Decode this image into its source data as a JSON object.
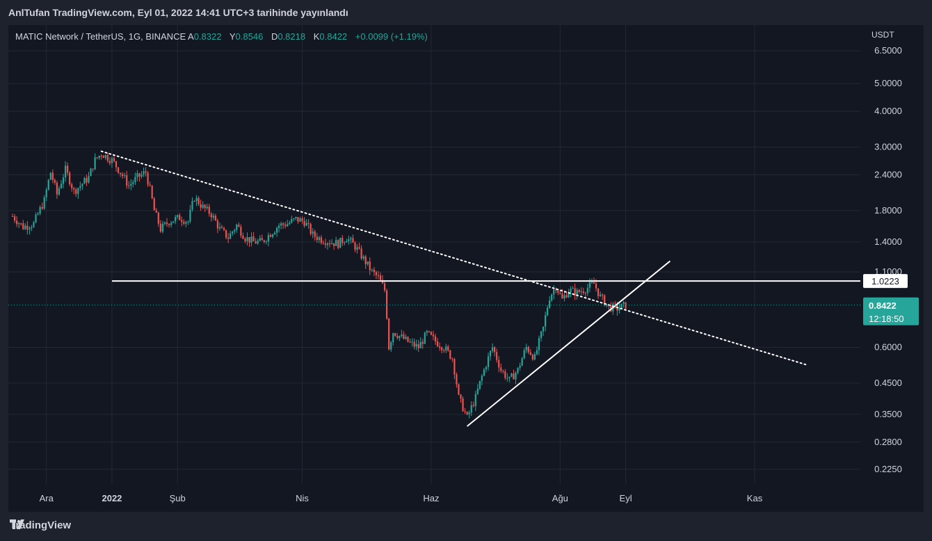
{
  "header": {
    "title": "AnlTufan TradingView.com, Eyl 01, 2022 14:41 UTC+3 tarihinde yayınlandı"
  },
  "legend": {
    "symbol": "MATIC Network / TetherUS, 1G, BINANCE",
    "open_label": "A",
    "open": "0.8322",
    "high_label": "Y",
    "high": "0.8546",
    "low_label": "D",
    "low": "0.8218",
    "close_label": "K",
    "close": "0.8422",
    "change": "+0.0099 (+1.19%)"
  },
  "axis": {
    "currency": "USDT"
  },
  "footer": {
    "brand": "TradingView"
  },
  "colors": {
    "up": "#26a69a",
    "down": "#ef5350",
    "background": "#131722",
    "grid": "#232834",
    "line": "#ffffff"
  },
  "chart_data": {
    "type": "candlestick",
    "y_scale": "log",
    "ylim": [
      0.2,
      8.0
    ],
    "y_ticks": [
      "6.5000",
      "5.0000",
      "4.0000",
      "3.0000",
      "2.4000",
      "1.8000",
      "1.4000",
      "1.1000",
      "0.6000",
      "0.4500",
      "0.3500",
      "0.2800",
      "0.2250"
    ],
    "x_ticks": [
      "Ara",
      "2022",
      "Şub",
      "Nis",
      "Haz",
      "Ağu",
      "Eyl",
      "Kas"
    ],
    "x_tick_dates": [
      "2021-12-01",
      "2022-01-01",
      "2022-02-01",
      "2022-04-01",
      "2022-06-01",
      "2022-08-01",
      "2022-09-01",
      "2022-11-01"
    ],
    "xlim": [
      "2021-11-13",
      "2022-12-21"
    ],
    "last_price": {
      "value": 0.8422,
      "label": "0.8422",
      "countdown": "12:18:50"
    },
    "horizontal_level": {
      "value": 1.0223,
      "label": "1.0223",
      "from": "2022-01-01"
    },
    "trendlines": [
      {
        "style": "dotted",
        "from": [
          "2021-12-27",
          2.9
        ],
        "to": [
          "2022-11-26",
          0.52
        ]
      },
      {
        "style": "solid",
        "from": [
          "2022-06-18",
          0.318
        ],
        "to": [
          "2022-09-22",
          1.2
        ]
      }
    ],
    "series": [
      {
        "date": "2021-11-15",
        "close": 1.72
      },
      {
        "date": "2021-11-20",
        "close": 1.58
      },
      {
        "date": "2021-11-25",
        "close": 1.62
      },
      {
        "date": "2021-11-30",
        "close": 1.95
      },
      {
        "date": "2021-12-03",
        "close": 2.45
      },
      {
        "date": "2021-12-06",
        "close": 2.05
      },
      {
        "date": "2021-12-10",
        "close": 2.5
      },
      {
        "date": "2021-12-14",
        "close": 2.1
      },
      {
        "date": "2021-12-17",
        "close": 2.2
      },
      {
        "date": "2021-12-21",
        "close": 2.35
      },
      {
        "date": "2021-12-24",
        "close": 2.7
      },
      {
        "date": "2021-12-27",
        "close": 2.85
      },
      {
        "date": "2022-01-01",
        "close": 2.7
      },
      {
        "date": "2022-01-05",
        "close": 2.45
      },
      {
        "date": "2022-01-09",
        "close": 2.2
      },
      {
        "date": "2022-01-13",
        "close": 2.35
      },
      {
        "date": "2022-01-17",
        "close": 2.45
      },
      {
        "date": "2022-01-21",
        "close": 1.8
      },
      {
        "date": "2022-01-24",
        "close": 1.55
      },
      {
        "date": "2022-01-28",
        "close": 1.65
      },
      {
        "date": "2022-02-02",
        "close": 1.7
      },
      {
        "date": "2022-02-06",
        "close": 1.65
      },
      {
        "date": "2022-02-09",
        "close": 2.0
      },
      {
        "date": "2022-02-13",
        "close": 1.85
      },
      {
        "date": "2022-02-17",
        "close": 1.75
      },
      {
        "date": "2022-02-21",
        "close": 1.55
      },
      {
        "date": "2022-02-25",
        "close": 1.45
      },
      {
        "date": "2022-03-01",
        "close": 1.6
      },
      {
        "date": "2022-03-05",
        "close": 1.45
      },
      {
        "date": "2022-03-09",
        "close": 1.4
      },
      {
        "date": "2022-03-13",
        "close": 1.4
      },
      {
        "date": "2022-03-17",
        "close": 1.5
      },
      {
        "date": "2022-03-21",
        "close": 1.6
      },
      {
        "date": "2022-03-25",
        "close": 1.62
      },
      {
        "date": "2022-03-29",
        "close": 1.68
      },
      {
        "date": "2022-04-02",
        "close": 1.65
      },
      {
        "date": "2022-04-06",
        "close": 1.48
      },
      {
        "date": "2022-04-10",
        "close": 1.43
      },
      {
        "date": "2022-04-14",
        "close": 1.4
      },
      {
        "date": "2022-04-18",
        "close": 1.38
      },
      {
        "date": "2022-04-22",
        "close": 1.45
      },
      {
        "date": "2022-04-26",
        "close": 1.35
      },
      {
        "date": "2022-04-30",
        "close": 1.22
      },
      {
        "date": "2022-05-04",
        "close": 1.1
      },
      {
        "date": "2022-05-07",
        "close": 1.05
      },
      {
        "date": "2022-05-10",
        "close": 0.95
      },
      {
        "date": "2022-05-12",
        "close": 0.6
      },
      {
        "date": "2022-05-14",
        "close": 0.68
      },
      {
        "date": "2022-05-18",
        "close": 0.65
      },
      {
        "date": "2022-05-22",
        "close": 0.62
      },
      {
        "date": "2022-05-26",
        "close": 0.6
      },
      {
        "date": "2022-05-30",
        "close": 0.67
      },
      {
        "date": "2022-06-03",
        "close": 0.63
      },
      {
        "date": "2022-06-07",
        "close": 0.6
      },
      {
        "date": "2022-06-11",
        "close": 0.55
      },
      {
        "date": "2022-06-14",
        "close": 0.4
      },
      {
        "date": "2022-06-18",
        "close": 0.34
      },
      {
        "date": "2022-06-22",
        "close": 0.4
      },
      {
        "date": "2022-06-26",
        "close": 0.5
      },
      {
        "date": "2022-06-30",
        "close": 0.6
      },
      {
        "date": "2022-07-04",
        "close": 0.5
      },
      {
        "date": "2022-07-08",
        "close": 0.46
      },
      {
        "date": "2022-07-12",
        "close": 0.5
      },
      {
        "date": "2022-07-16",
        "close": 0.6
      },
      {
        "date": "2022-07-20",
        "close": 0.55
      },
      {
        "date": "2022-07-24",
        "close": 0.7
      },
      {
        "date": "2022-07-27",
        "close": 0.9
      },
      {
        "date": "2022-07-30",
        "close": 0.98
      },
      {
        "date": "2022-08-02",
        "close": 0.88
      },
      {
        "date": "2022-08-05",
        "close": 0.95
      },
      {
        "date": "2022-08-09",
        "close": 0.93
      },
      {
        "date": "2022-08-13",
        "close": 0.96
      },
      {
        "date": "2022-08-17",
        "close": 1.0
      },
      {
        "date": "2022-08-20",
        "close": 0.9
      },
      {
        "date": "2022-08-24",
        "close": 0.83
      },
      {
        "date": "2022-08-28",
        "close": 0.82
      },
      {
        "date": "2022-09-01",
        "close": 0.8422
      }
    ]
  }
}
